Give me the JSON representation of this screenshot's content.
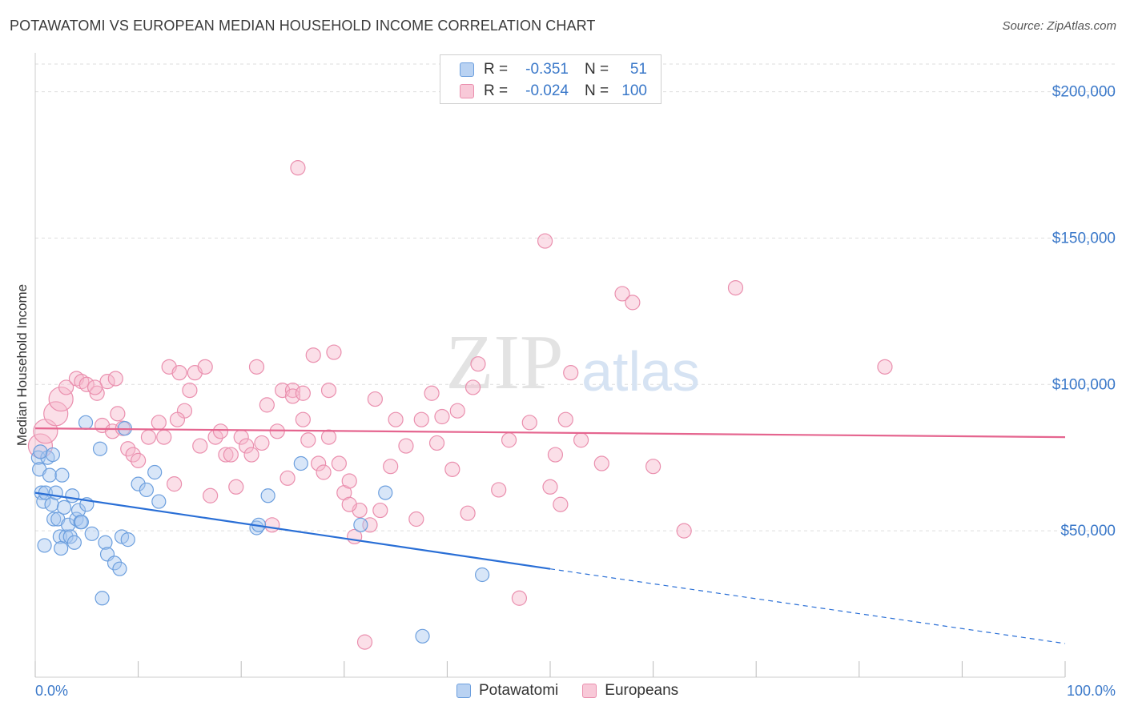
{
  "title": "POTAWATOMI VS EUROPEAN MEDIAN HOUSEHOLD INCOME CORRELATION CHART",
  "source": "Source: ZipAtlas.com",
  "watermark": {
    "zip": "ZIP",
    "atlas": "atlas"
  },
  "colors": {
    "blue_fill": "#a8c8f0",
    "blue_stroke": "#6c9fde",
    "blue_line": "#2a6fd6",
    "pink_fill": "#f6b9cc",
    "pink_stroke": "#ea8fae",
    "pink_line": "#e5658f",
    "axis_text": "#3a78c9",
    "grid": "#dddddd"
  },
  "legend": {
    "rows": [
      {
        "r_label": "R =",
        "r_value": "-0.351",
        "n_label": "N =",
        "n_value": "51"
      },
      {
        "r_label": "R =",
        "r_value": "-0.024",
        "n_label": "N =",
        "n_value": "100"
      }
    ]
  },
  "bottom_legend": [
    "Potawatomi",
    "Europeans"
  ],
  "chart_data": {
    "type": "scatter",
    "title": "POTAWATOMI VS EUROPEAN MEDIAN HOUSEHOLD INCOME CORRELATION CHART",
    "xlabel": "",
    "ylabel": "Median Household Income",
    "xlim": [
      0,
      100
    ],
    "ylim": [
      0,
      210000
    ],
    "x_tick_labels": [
      "0.0%",
      "100.0%"
    ],
    "y_ticks": [
      50000,
      100000,
      150000,
      200000
    ],
    "y_tick_labels": [
      "$50,000",
      "$100,000",
      "$150,000",
      "$200,000"
    ],
    "grid": true,
    "series": [
      {
        "name": "Potawatomi",
        "color": "blue",
        "trend": {
          "x0": 0,
          "y0": 63000,
          "x1": 50,
          "y1": 37000,
          "dash_x1": 100,
          "dash_y1": 11500
        },
        "points": [
          [
            0.3,
            75000
          ],
          [
            0.4,
            71000
          ],
          [
            0.6,
            63000
          ],
          [
            0.8,
            60000
          ],
          [
            1.0,
            63000
          ],
          [
            1.2,
            75000
          ],
          [
            1.4,
            69000
          ],
          [
            1.6,
            59000
          ],
          [
            1.8,
            54000
          ],
          [
            2.0,
            63000
          ],
          [
            2.2,
            54000
          ],
          [
            2.4,
            48000
          ],
          [
            2.6,
            69000
          ],
          [
            2.8,
            58000
          ],
          [
            3.0,
            48000
          ],
          [
            3.2,
            52000
          ],
          [
            3.4,
            48000
          ],
          [
            3.6,
            62000
          ],
          [
            3.8,
            46000
          ],
          [
            4.0,
            54000
          ],
          [
            4.2,
            57000
          ],
          [
            4.4,
            53000
          ],
          [
            4.5,
            53000
          ],
          [
            5.0,
            59000
          ],
          [
            5.5,
            49000
          ],
          [
            6.3,
            78000
          ],
          [
            6.8,
            46000
          ],
          [
            7.0,
            42000
          ],
          [
            7.7,
            39000
          ],
          [
            8.2,
            37000
          ],
          [
            8.4,
            48000
          ],
          [
            8.7,
            85000
          ],
          [
            9.0,
            47000
          ],
          [
            10.0,
            66000
          ],
          [
            10.8,
            64000
          ],
          [
            11.6,
            70000
          ],
          [
            12.0,
            60000
          ],
          [
            6.5,
            27000
          ],
          [
            0.5,
            77000
          ],
          [
            1.7,
            76000
          ],
          [
            0.9,
            45000
          ],
          [
            2.5,
            44000
          ],
          [
            21.5,
            51000
          ],
          [
            21.7,
            52000
          ],
          [
            22.6,
            62000
          ],
          [
            25.8,
            73000
          ],
          [
            31.6,
            52000
          ],
          [
            34.0,
            63000
          ],
          [
            43.4,
            35000
          ],
          [
            37.6,
            14000
          ],
          [
            4.9,
            87000
          ]
        ]
      },
      {
        "name": "Europeans",
        "color": "pink",
        "trend": {
          "x0": 0,
          "y0": 85000,
          "x1": 100,
          "y1": 82000
        },
        "points": [
          [
            0.5,
            79000
          ],
          [
            1.0,
            84000
          ],
          [
            2.0,
            90000
          ],
          [
            2.5,
            95000
          ],
          [
            3.0,
            99000
          ],
          [
            4.0,
            102000
          ],
          [
            4.5,
            101000
          ],
          [
            5.0,
            100000
          ],
          [
            6.0,
            97000
          ],
          [
            6.5,
            86000
          ],
          [
            7.0,
            101000
          ],
          [
            7.5,
            84000
          ],
          [
            8.0,
            90000
          ],
          [
            8.5,
            85000
          ],
          [
            9.0,
            78000
          ],
          [
            9.5,
            76000
          ],
          [
            10.0,
            74000
          ],
          [
            11.0,
            82000
          ],
          [
            12.0,
            87000
          ],
          [
            12.5,
            82000
          ],
          [
            13.0,
            106000
          ],
          [
            13.5,
            66000
          ],
          [
            14.0,
            104000
          ],
          [
            14.5,
            91000
          ],
          [
            15.0,
            98000
          ],
          [
            15.5,
            104000
          ],
          [
            16.0,
            79000
          ],
          [
            16.5,
            106000
          ],
          [
            17.0,
            62000
          ],
          [
            17.5,
            82000
          ],
          [
            18.0,
            84000
          ],
          [
            18.5,
            76000
          ],
          [
            19.0,
            76000
          ],
          [
            19.5,
            65000
          ],
          [
            20.0,
            82000
          ],
          [
            20.5,
            79000
          ],
          [
            21.0,
            76000
          ],
          [
            21.5,
            106000
          ],
          [
            22.0,
            80000
          ],
          [
            22.5,
            93000
          ],
          [
            23.0,
            52000
          ],
          [
            23.5,
            84000
          ],
          [
            24.0,
            98000
          ],
          [
            24.5,
            68000
          ],
          [
            25.0,
            98000
          ],
          [
            25.5,
            174000
          ],
          [
            26.0,
            88000
          ],
          [
            26.5,
            81000
          ],
          [
            27.0,
            110000
          ],
          [
            27.5,
            73000
          ],
          [
            28.0,
            70000
          ],
          [
            28.5,
            82000
          ],
          [
            29.0,
            111000
          ],
          [
            29.5,
            73000
          ],
          [
            30.0,
            63000
          ],
          [
            30.5,
            67000
          ],
          [
            31.0,
            48000
          ],
          [
            31.5,
            57000
          ],
          [
            32.5,
            52000
          ],
          [
            33.0,
            95000
          ],
          [
            33.5,
            57000
          ],
          [
            34.5,
            72000
          ],
          [
            35.0,
            88000
          ],
          [
            36.0,
            79000
          ],
          [
            37.0,
            54000
          ],
          [
            37.5,
            88000
          ],
          [
            38.5,
            97000
          ],
          [
            39.0,
            80000
          ],
          [
            39.5,
            89000
          ],
          [
            40.5,
            71000
          ],
          [
            41.0,
            91000
          ],
          [
            42.0,
            56000
          ],
          [
            42.5,
            99000
          ],
          [
            43.0,
            107000
          ],
          [
            45.0,
            64000
          ],
          [
            46.0,
            81000
          ],
          [
            47.0,
            27000
          ],
          [
            48.0,
            87000
          ],
          [
            49.5,
            149000
          ],
          [
            50.0,
            65000
          ],
          [
            50.5,
            76000
          ],
          [
            51.0,
            59000
          ],
          [
            51.5,
            88000
          ],
          [
            52.0,
            104000
          ],
          [
            53.0,
            81000
          ],
          [
            55.0,
            73000
          ],
          [
            57.0,
            131000
          ],
          [
            58.0,
            128000
          ],
          [
            60.0,
            72000
          ],
          [
            63.0,
            50000
          ],
          [
            68.0,
            133000
          ],
          [
            82.5,
            106000
          ],
          [
            32.0,
            12000
          ],
          [
            25.0,
            96000
          ],
          [
            28.5,
            98000
          ],
          [
            13.8,
            88000
          ],
          [
            5.8,
            99000
          ],
          [
            7.8,
            102000
          ],
          [
            26.0,
            97000
          ],
          [
            30.5,
            59000
          ]
        ]
      }
    ]
  }
}
